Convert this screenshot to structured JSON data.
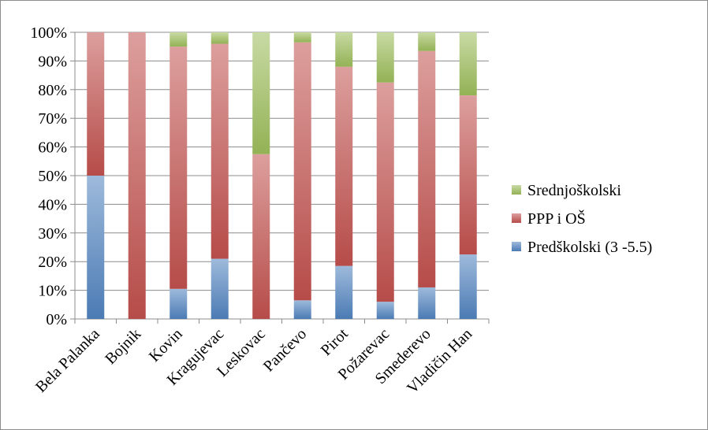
{
  "chart_data": {
    "type": "bar",
    "stacked": true,
    "percent": true,
    "title": "",
    "xlabel": "",
    "ylabel": "",
    "ylim": [
      0,
      100
    ],
    "y_ticks": [
      "0%",
      "10%",
      "20%",
      "30%",
      "40%",
      "50%",
      "60%",
      "70%",
      "80%",
      "90%",
      "100%"
    ],
    "grid": true,
    "legend_position": "right",
    "categories": [
      "Bela Palanka",
      "Bojnik",
      "Kovin",
      "Kragujevac",
      "Leskovac",
      "Pančevo",
      "Pirot",
      "Požarevac",
      "Smederevo",
      "Vladičin Han"
    ],
    "series": [
      {
        "name": "Predškolski (3 -5.5)",
        "color": "#4f81bd",
        "values": [
          50,
          0,
          10.5,
          21,
          0,
          6.5,
          18.5,
          6,
          11,
          22.5
        ]
      },
      {
        "name": "PPP i OŠ",
        "color": "#c0504d",
        "values": [
          50,
          100,
          84.5,
          75,
          57.5,
          90,
          69.5,
          76.5,
          82.5,
          55.5
        ]
      },
      {
        "name": "Srednjoškolski",
        "color": "#9bbb59",
        "values": [
          0,
          0,
          5,
          4,
          42.5,
          3.5,
          12,
          17.5,
          6.5,
          22
        ]
      }
    ]
  }
}
